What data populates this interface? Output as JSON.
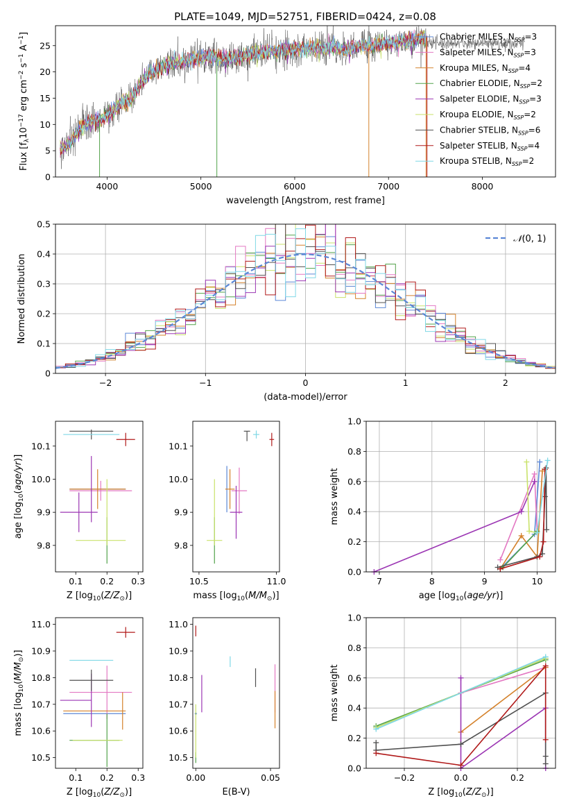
{
  "figure": {
    "title": "PLATE=1049, MJD=52751, FIBERID=0424, z=0.08"
  },
  "series_styles": [
    {
      "name": "Chabrier MILES, N$_{SSP}$=3",
      "short": "Chabrier MILES",
      "nssp": "3",
      "color": "#5b87d6"
    },
    {
      "name": "Salpeter MILES, N$_{SSP}$=3",
      "short": "Salpeter MILES",
      "nssp": "3",
      "color": "#e377c2"
    },
    {
      "name": "Kroupa MILES, N$_{SSP}$=4",
      "short": "Kroupa MILES",
      "nssp": "4",
      "color": "#d4812a"
    },
    {
      "name": "Chabrier ELODIE, N$_{SSP}$=2",
      "short": "Chabrier ELODIE",
      "nssp": "2",
      "color": "#52a24a"
    },
    {
      "name": "Salpeter ELODIE, N$_{SSP}$=3",
      "short": "Salpeter ELODIE",
      "nssp": "3",
      "color": "#9b35b3"
    },
    {
      "name": "Kroupa ELODIE, N$_{SSP}$=2",
      "short": "Kroupa ELODIE",
      "nssp": "2",
      "color": "#c9e26a"
    },
    {
      "name": "Chabrier STELIB, N$_{SSP}$=6",
      "short": "Chabrier STELIB",
      "nssp": "6",
      "color": "#505050"
    },
    {
      "name": "Salpeter STELIB, N$_{SSP}$=4",
      "short": "Salpeter STELIB",
      "nssp": "4",
      "color": "#b01919"
    },
    {
      "name": "Kroupa STELIB, N$_{SSP}$=2",
      "short": "Kroupa STELIB",
      "nssp": "2",
      "color": "#7fd8e6"
    }
  ],
  "chart_data": [
    {
      "id": "spectrum",
      "type": "line",
      "title": "PLATE=1049, MJD=52751, FIBERID=0424, z=0.08",
      "xlabel": "wavelength [Angstrom, rest frame]",
      "ylabel": "Flux [f_λ 10^-17 erg cm^-2 s^-1 A^-1]",
      "xlim": [
        3450,
        8780
      ],
      "ylim": [
        0,
        28.8
      ],
      "xticks": [
        4000,
        5000,
        6000,
        7000,
        8000
      ],
      "yticks": [
        0,
        5,
        10,
        15,
        20,
        25
      ],
      "legend_position": "top-right",
      "continuum": {
        "x": [
          3550,
          3650,
          3750,
          3850,
          3950,
          4050,
          4150,
          4250,
          4350,
          4450,
          4550,
          4650,
          4750,
          4850,
          4950,
          5050,
          5150,
          5250,
          5350,
          5450,
          5550,
          5650,
          5750,
          5850,
          5950,
          6050,
          6150,
          6250,
          6350,
          6450,
          6550,
          6650,
          6750,
          6850,
          6950,
          7050,
          7150,
          7250,
          7350,
          7450
        ],
        "y": [
          5.5,
          7.5,
          10.0,
          10.5,
          11.0,
          12.5,
          14.0,
          14.5,
          17.5,
          19.5,
          20.5,
          21.5,
          21.8,
          22.2,
          22.5,
          22.8,
          23.0,
          22.5,
          22.8,
          23.0,
          23.5,
          23.8,
          24.0,
          24.2,
          24.3,
          24.5,
          24.5,
          24.6,
          24.5,
          24.7,
          24.2,
          24.8,
          25.0,
          25.2,
          25.3,
          25.5,
          25.8,
          26.0,
          26.4,
          27.2
        ]
      },
      "model_x_range": [
        3500,
        7400
      ],
      "data_x_range": [
        3500,
        8450
      ]
    },
    {
      "id": "residuals",
      "type": "bar",
      "xlabel": "(data-model)/error",
      "ylabel": "Normed distribution",
      "xlim": [
        -2.5,
        2.5
      ],
      "ylim": [
        0,
        0.5
      ],
      "xticks": [
        -2,
        -1,
        0,
        1,
        2
      ],
      "yticks": [
        0,
        0.1,
        0.2,
        0.3,
        0.4,
        0.5
      ],
      "bin_width": 0.1,
      "reference_curve": {
        "name": "N(0,1)",
        "type": "gaussian",
        "mean": 0,
        "sigma": 1,
        "style": "dashed"
      },
      "legend_position": "top-right"
    },
    {
      "id": "age-vs-Z",
      "type": "scatter",
      "xlabel": "Z [log10(Z/Z_sun)]",
      "ylabel": "age [log10(age/yr)]",
      "xlim": [
        0.035,
        0.315
      ],
      "ylim": [
        9.72,
        10.175
      ],
      "xticks": [
        0.1,
        0.2,
        0.3
      ],
      "yticks": [
        9.8,
        9.9,
        10.0,
        10.1
      ],
      "points": [
        {
          "series": 0,
          "x": 0.17,
          "xerr": 0.09,
          "y": 9.97,
          "yerr": 0.0
        },
        {
          "series": 1,
          "x": 0.18,
          "xerr": 0.1,
          "y": 9.965,
          "yerr": 0.03
        },
        {
          "series": 2,
          "x": 0.17,
          "xerr": 0.09,
          "y": 9.97,
          "yerr": 0.06
        },
        {
          "series": 3,
          "x": 0.2,
          "xerr": 0.0,
          "y": 9.815,
          "yerr": 0.07
        },
        {
          "series": 4,
          "x": 0.11,
          "xerr": 0.06,
          "y": 9.9,
          "yerr": 0.06
        },
        {
          "series": 4,
          "x": 0.15,
          "xerr": 0.0,
          "y": 9.97,
          "yerr": 0.1
        },
        {
          "series": 5,
          "x": 0.18,
          "xerr": 0.08,
          "y": 9.815,
          "yerr": 0.0
        },
        {
          "series": 5,
          "x": 0.2,
          "xerr": 0.0,
          "y": 9.9,
          "yerr": 0.1
        },
        {
          "series": 6,
          "x": 0.15,
          "xerr": 0.07,
          "y": 10.145,
          "yerr": 0.0
        },
        {
          "series": 6,
          "x": 0.15,
          "xerr": 0.0,
          "y": 10.135,
          "yerr": 0.015
        },
        {
          "series": 7,
          "x": 0.26,
          "xerr": 0.03,
          "y": 10.12,
          "yerr": 0.02
        },
        {
          "series": 8,
          "x": 0.15,
          "xerr": 0.09,
          "y": 10.135,
          "yerr": 0.0
        }
      ]
    },
    {
      "id": "age-vs-mass",
      "type": "scatter",
      "xlabel": "mass [log10(M/M_sun)]",
      "ylabel": "",
      "xlim": [
        10.46,
        11.02
      ],
      "ylim": [
        9.72,
        10.175
      ],
      "xticks": [
        10.5,
        11.0
      ],
      "yticks": [
        9.8,
        9.9,
        10.0,
        10.1
      ],
      "points": [
        {
          "series": 0,
          "x": 10.68,
          "xerr": 0.0,
          "y": 9.97,
          "yerr": 0.07
        },
        {
          "series": 1,
          "x": 10.76,
          "xerr": 0.05,
          "y": 9.965,
          "yerr": 0.07
        },
        {
          "series": 2,
          "x": 10.7,
          "xerr": 0.03,
          "y": 9.97,
          "yerr": 0.06
        },
        {
          "series": 3,
          "x": 10.6,
          "xerr": 0.0,
          "y": 9.815,
          "yerr": 0.07
        },
        {
          "series": 4,
          "x": 10.74,
          "xerr": 0.04,
          "y": 9.9,
          "yerr": 0.08
        },
        {
          "series": 5,
          "x": 10.6,
          "xerr": 0.05,
          "y": 9.815,
          "yerr": 0.0
        },
        {
          "series": 5,
          "x": 10.6,
          "xerr": 0.0,
          "y": 9.9,
          "yerr": 0.1
        },
        {
          "series": 6,
          "x": 10.81,
          "xerr": 0.02,
          "y": 10.145,
          "yerr": 0.0
        },
        {
          "series": 6,
          "x": 10.81,
          "xerr": 0.0,
          "y": 10.13,
          "yerr": 0.015
        },
        {
          "series": 7,
          "x": 10.97,
          "xerr": 0.015,
          "y": 10.12,
          "yerr": 0.02
        },
        {
          "series": 8,
          "x": 10.87,
          "xerr": 0.02,
          "y": 10.135,
          "yerr": 0.012
        }
      ]
    },
    {
      "id": "weight-vs-age",
      "type": "line",
      "xlabel": "age [log10(age/yr)]",
      "ylabel": "mass weight",
      "xlim": [
        6.75,
        10.35
      ],
      "ylim": [
        0,
        1.0
      ],
      "xticks": [
        7,
        8,
        9,
        10
      ],
      "yticks": [
        0.0,
        0.2,
        0.4,
        0.6,
        0.8,
        1.0
      ],
      "series": [
        {
          "series": 0,
          "x": [
            9.3,
            9.95,
            10.05
          ],
          "y": [
            0.02,
            0.25,
            0.73
          ]
        },
        {
          "series": 1,
          "x": [
            9.3,
            9.95,
            10.0
          ],
          "y": [
            0.08,
            0.65,
            0.27
          ]
        },
        {
          "series": 2,
          "x": [
            9.3,
            9.7,
            10.0,
            10.1
          ],
          "y": [
            0.02,
            0.24,
            0.1,
            0.67
          ]
        },
        {
          "series": 3,
          "x": [
            9.35,
            10.0
          ],
          "y": [
            0.03,
            0.27
          ]
        },
        {
          "series": 4,
          "x": [
            6.9,
            9.7,
            9.95
          ],
          "y": [
            0.0,
            0.4,
            0.6
          ]
        },
        {
          "series": 5,
          "x": [
            9.8,
            9.85,
            10.0
          ],
          "y": [
            0.73,
            0.27,
            0.26
          ]
        },
        {
          "series": 6,
          "x": [
            9.25,
            10.0,
            10.1,
            10.15,
            10.17,
            10.18
          ],
          "y": [
            0.03,
            0.1,
            0.12,
            0.5,
            0.69,
            0.28
          ]
        },
        {
          "series": 7,
          "x": [
            9.3,
            10.05,
            10.12,
            10.15
          ],
          "y": [
            0.02,
            0.1,
            0.2,
            0.68
          ]
        },
        {
          "series": 8,
          "x": [
            10.0,
            10.2
          ],
          "y": [
            0.26,
            0.74
          ]
        }
      ]
    },
    {
      "id": "mass-vs-Z",
      "type": "scatter",
      "xlabel": "Z [log10(Z/Z_sun)]",
      "ylabel": "mass [log10(M/M_sun)]",
      "xlim": [
        0.035,
        0.315
      ],
      "ylim": [
        10.46,
        11.025
      ],
      "xticks": [
        0.1,
        0.2,
        0.3
      ],
      "yticks": [
        10.5,
        10.6,
        10.7,
        10.8,
        10.9,
        11.0
      ],
      "points": [
        {
          "series": 0,
          "x": 0.16,
          "xerr": 0.1,
          "y": 10.665,
          "yerr": 0.0
        },
        {
          "series": 1,
          "x": 0.18,
          "xerr": 0.1,
          "y": 10.745,
          "yerr": 0.0
        },
        {
          "series": 1,
          "x": 0.2,
          "xerr": 0.0,
          "y": 10.745,
          "yerr": 0.1
        },
        {
          "series": 2,
          "x": 0.16,
          "xerr": 0.1,
          "y": 10.675,
          "yerr": 0.0
        },
        {
          "series": 2,
          "x": 0.25,
          "xerr": 0.0,
          "y": 10.675,
          "yerr": 0.07
        },
        {
          "series": 3,
          "x": 0.2,
          "xerr": 0.0,
          "y": 10.565,
          "yerr": 0.1
        },
        {
          "series": 3,
          "x": 0.16,
          "xerr": 0.08,
          "y": 10.565,
          "yerr": 0.0
        },
        {
          "series": 4,
          "x": 0.1,
          "xerr": 0.05,
          "y": 10.715,
          "yerr": 0.0
        },
        {
          "series": 4,
          "x": 0.15,
          "xerr": 0.0,
          "y": 10.715,
          "yerr": 0.1
        },
        {
          "series": 5,
          "x": 0.17,
          "xerr": 0.08,
          "y": 10.565,
          "yerr": 0.0
        },
        {
          "series": 6,
          "x": 0.15,
          "xerr": 0.07,
          "y": 10.79,
          "yerr": 0.0
        },
        {
          "series": 6,
          "x": 0.15,
          "xerr": 0.0,
          "y": 10.79,
          "yerr": 0.04
        },
        {
          "series": 7,
          "x": 0.26,
          "xerr": 0.03,
          "y": 10.97,
          "yerr": 0.02
        },
        {
          "series": 8,
          "x": 0.15,
          "xerr": 0.07,
          "y": 10.865,
          "yerr": 0.0
        }
      ]
    },
    {
      "id": "mass-vs-EBV",
      "type": "scatter",
      "xlabel": "E(B-V)",
      "ylabel": "",
      "xlim": [
        -0.002,
        0.056
      ],
      "ylim": [
        10.46,
        11.025
      ],
      "xticks": [
        0.0,
        0.05
      ],
      "yticks": [
        10.5,
        10.6,
        10.7,
        10.8,
        10.9,
        11.0
      ],
      "points": [
        {
          "series": 0,
          "x": 0.0,
          "y": 10.665,
          "yerr": 0.0
        },
        {
          "series": 1,
          "x": 0.053,
          "y": 10.76,
          "yerr": 0.09
        },
        {
          "series": 2,
          "x": 0.053,
          "y": 10.68,
          "yerr": 0.07
        },
        {
          "series": 3,
          "x": 0.0,
          "y": 10.5,
          "yerr": 0.02
        },
        {
          "series": 4,
          "x": 0.004,
          "y": 10.74,
          "yerr": 0.07
        },
        {
          "series": 5,
          "x": 0.0,
          "y": 10.6,
          "yerr": 0.1
        },
        {
          "series": 6,
          "x": 0.04,
          "y": 10.8,
          "yerr": 0.035
        },
        {
          "series": 7,
          "x": 0.0,
          "y": 10.975,
          "yerr": 0.02
        },
        {
          "series": 8,
          "x": 0.023,
          "y": 10.86,
          "yerr": 0.02
        }
      ]
    },
    {
      "id": "weight-vs-Z",
      "type": "line",
      "xlabel": "Z [log10(Z/Z_sun)]",
      "ylabel": "mass weight",
      "xlim": [
        -0.335,
        0.335
      ],
      "ylim": [
        0,
        1.0
      ],
      "xticks": [
        -0.2,
        0.0,
        0.2
      ],
      "yticks": [
        0.0,
        0.2,
        0.4,
        0.6,
        0.8,
        1.0
      ],
      "series": [
        {
          "series": 0,
          "x": [
            -0.3,
            0.3
          ],
          "y": [
            0.27,
            0.73
          ]
        },
        {
          "series": 1,
          "x": [
            0.0,
            0.3
          ],
          "y": [
            0.5,
            0.67
          ]
        },
        {
          "series": 2,
          "x": [
            0.0,
            0.3
          ],
          "y": [
            0.24,
            0.67
          ]
        },
        {
          "series": 3,
          "x": [
            -0.3,
            0.3
          ],
          "y": [
            0.28,
            0.72
          ]
        },
        {
          "series": 4,
          "x": [
            0.0,
            0.0,
            0.3,
            0.3
          ],
          "y": [
            0.6,
            0.0,
            0.4,
            0.0
          ]
        },
        {
          "series": 5,
          "x": [
            -0.3,
            0.3
          ],
          "y": [
            0.27,
            0.73
          ]
        },
        {
          "series": 6,
          "x": [
            -0.3,
            -0.3,
            0.0,
            0.3,
            0.3,
            0.3
          ],
          "y": [
            0.17,
            0.12,
            0.16,
            0.5,
            0.08,
            0.03
          ]
        },
        {
          "series": 7,
          "x": [
            -0.3,
            0.0,
            0.3,
            0.3
          ],
          "y": [
            0.1,
            0.02,
            0.68,
            0.19
          ]
        },
        {
          "series": 8,
          "x": [
            -0.3,
            0.3
          ],
          "y": [
            0.26,
            0.74
          ]
        }
      ]
    }
  ]
}
